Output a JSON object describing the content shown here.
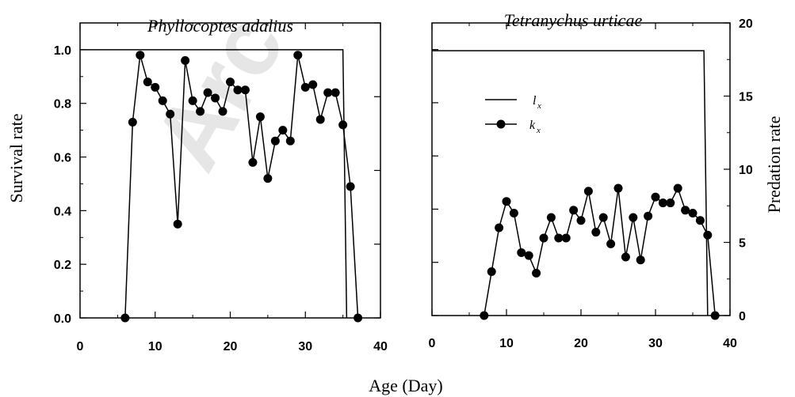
{
  "watermark": "Arc",
  "figure": {
    "xlabel": "Age (Day)",
    "left_ylabel": "Survival rate",
    "right_ylabel": "Predation rate"
  },
  "chart_data": [
    {
      "type": "line",
      "title": "Phyllocoptes adalius",
      "xlabel": "Age (Day)",
      "ylabel": "Survival rate",
      "xlim": [
        0,
        40
      ],
      "ylim": [
        0,
        1.1
      ],
      "x_ticks": [
        0,
        10,
        20,
        30,
        40
      ],
      "y_ticks": [
        0.0,
        0.2,
        0.4,
        0.6,
        0.8,
        1.0
      ],
      "x_tick_labels": [
        "0",
        "10",
        "20",
        "30",
        "40"
      ],
      "y_tick_labels": [
        "0.0",
        "0.2",
        "0.4",
        "0.6",
        "0.8",
        "1.0"
      ],
      "series": [
        {
          "name": "lx",
          "axis": "left",
          "style": "line",
          "points": [
            [
              0,
              1.0
            ],
            [
              35,
              1.0
            ],
            [
              35.5,
              0.0
            ]
          ]
        },
        {
          "name": "kx",
          "axis": "right",
          "style": "line-markers",
          "points": [
            [
              6,
              0.0
            ],
            [
              7,
              0.73
            ],
            [
              8,
              0.98
            ],
            [
              9,
              0.88
            ],
            [
              10,
              0.86
            ],
            [
              11,
              0.81
            ],
            [
              12,
              0.76
            ],
            [
              13,
              0.35
            ],
            [
              14,
              0.96
            ],
            [
              15,
              0.81
            ],
            [
              16,
              0.77
            ],
            [
              17,
              0.84
            ],
            [
              18,
              0.82
            ],
            [
              19,
              0.77
            ],
            [
              20,
              0.88
            ],
            [
              21,
              0.85
            ],
            [
              22,
              0.85
            ],
            [
              23,
              0.58
            ],
            [
              24,
              0.75
            ],
            [
              25,
              0.52
            ],
            [
              26,
              0.66
            ],
            [
              27,
              0.7
            ],
            [
              28,
              0.66
            ],
            [
              29,
              0.98
            ],
            [
              30,
              0.86
            ],
            [
              31,
              0.87
            ],
            [
              32,
              0.74
            ],
            [
              33,
              0.84
            ],
            [
              34,
              0.84
            ],
            [
              35,
              0.72
            ],
            [
              36,
              0.49
            ],
            [
              37,
              0.0
            ]
          ]
        }
      ]
    },
    {
      "type": "line",
      "title": "Tetranychus urticae",
      "xlabel": "Age (Day)",
      "ylabel": "Predation rate",
      "xlim": [
        0,
        40
      ],
      "ylim": [
        0,
        20
      ],
      "x_ticks": [
        0,
        10,
        20,
        30,
        40
      ],
      "y_ticks": [
        0,
        5,
        10,
        15,
        20
      ],
      "x_tick_labels": [
        "0",
        "10",
        "20",
        "30",
        "40"
      ],
      "y_tick_labels": [
        "0",
        "5",
        "10",
        "15",
        "20"
      ],
      "legend": {
        "position": "upper-left",
        "entries": [
          {
            "label": "l",
            "sub": "x",
            "style": "line"
          },
          {
            "label": "k",
            "sub": "x",
            "style": "line-markers"
          }
        ]
      },
      "series": [
        {
          "name": "lx",
          "axis": "left",
          "style": "line",
          "points": [
            [
              0,
              18.1
            ],
            [
              36.5,
              18.1
            ],
            [
              37,
              0.0
            ]
          ]
        },
        {
          "name": "kx",
          "axis": "right",
          "style": "line-markers",
          "points": [
            [
              7,
              0.0
            ],
            [
              8,
              3.0
            ],
            [
              9,
              6.0
            ],
            [
              10,
              7.8
            ],
            [
              11,
              7.0
            ],
            [
              12,
              4.3
            ],
            [
              13,
              4.1
            ],
            [
              14,
              2.9
            ],
            [
              15,
              5.3
            ],
            [
              16,
              6.7
            ],
            [
              17,
              5.3
            ],
            [
              18,
              5.3
            ],
            [
              19,
              7.2
            ],
            [
              20,
              6.5
            ],
            [
              21,
              8.5
            ],
            [
              22,
              5.7
            ],
            [
              23,
              6.7
            ],
            [
              24,
              4.9
            ],
            [
              25,
              8.7
            ],
            [
              26,
              4.0
            ],
            [
              27,
              6.7
            ],
            [
              28,
              3.8
            ],
            [
              29,
              6.8
            ],
            [
              30,
              8.1
            ],
            [
              31,
              7.7
            ],
            [
              32,
              7.7
            ],
            [
              33,
              8.7
            ],
            [
              34,
              7.2
            ],
            [
              35,
              7.0
            ],
            [
              36,
              6.5
            ],
            [
              37,
              5.5
            ],
            [
              38,
              0.0
            ]
          ]
        }
      ]
    }
  ]
}
